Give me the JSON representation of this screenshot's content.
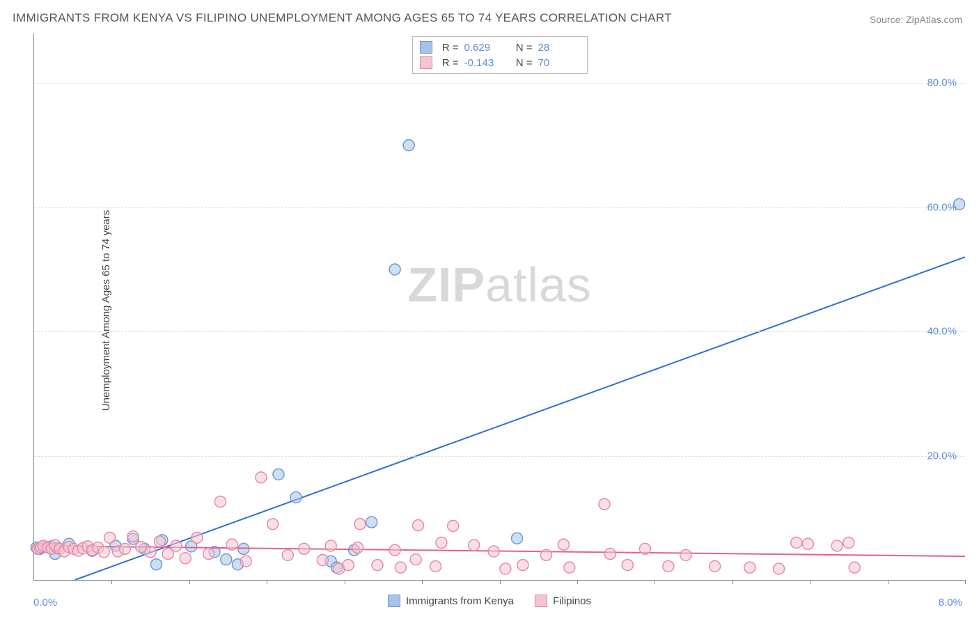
{
  "title": "IMMIGRANTS FROM KENYA VS FILIPINO UNEMPLOYMENT AMONG AGES 65 TO 74 YEARS CORRELATION CHART",
  "source": "Source: ZipAtlas.com",
  "ylabel": "Unemployment Among Ages 65 to 74 years",
  "watermark_left": "ZIP",
  "watermark_right": "atlas",
  "chart": {
    "type": "scatter",
    "background_color": "#ffffff",
    "grid_color": "#dddddd",
    "axis_color": "#888888",
    "tick_label_color": "#5b8fd6",
    "xlim": [
      0.0,
      8.0
    ],
    "ylim": [
      0.0,
      88.0
    ],
    "xlim_labels": [
      "0.0%",
      "8.0%"
    ],
    "yticks": [
      20.0,
      40.0,
      60.0,
      80.0
    ],
    "ytick_labels": [
      "20.0%",
      "40.0%",
      "60.0%",
      "80.0%"
    ],
    "xtick_count": 12,
    "marker_radius": 8,
    "marker_stroke_width": 1.5,
    "trend_line_width": 2,
    "series": [
      {
        "name": "Immigrants from Kenya",
        "fill_color": "#a7c4e8",
        "stroke_color": "#6b9bd6",
        "swatch_fill": "#a7c4e8",
        "swatch_border": "#6b9bd6",
        "trend_color": "#2e6fd4",
        "stats": {
          "R": "0.629",
          "N": "28"
        },
        "trend": {
          "x1": 0.35,
          "y1": 0.0,
          "x2": 8.0,
          "y2": 52.0
        },
        "points": [
          [
            0.02,
            5.2
          ],
          [
            0.05,
            5.0
          ],
          [
            0.1,
            5.3
          ],
          [
            0.15,
            5.4
          ],
          [
            0.18,
            4.2
          ],
          [
            0.2,
            5.1
          ],
          [
            0.3,
            5.8
          ],
          [
            0.5,
            4.7
          ],
          [
            0.7,
            5.5
          ],
          [
            0.85,
            6.6
          ],
          [
            0.95,
            5.0
          ],
          [
            1.05,
            2.5
          ],
          [
            1.1,
            6.4
          ],
          [
            1.35,
            5.4
          ],
          [
            1.55,
            4.5
          ],
          [
            1.65,
            3.3
          ],
          [
            1.75,
            2.5
          ],
          [
            1.8,
            5.0
          ],
          [
            2.1,
            17.0
          ],
          [
            2.25,
            13.3
          ],
          [
            2.55,
            3.0
          ],
          [
            2.6,
            2.0
          ],
          [
            2.75,
            4.8
          ],
          [
            2.9,
            9.3
          ],
          [
            3.1,
            50.0
          ],
          [
            3.22,
            70.0
          ],
          [
            4.15,
            6.7
          ],
          [
            7.95,
            60.5
          ]
        ]
      },
      {
        "name": "Filipinos",
        "fill_color": "#f4c4d1",
        "stroke_color": "#e88aa5",
        "swatch_fill": "#f4c4d1",
        "swatch_border": "#e88aa5",
        "trend_color": "#e95f8b",
        "stats": {
          "R": "-0.143",
          "N": "70"
        },
        "trend": {
          "x1": 0.0,
          "y1": 5.5,
          "x2": 8.0,
          "y2": 3.8
        },
        "points": [
          [
            0.03,
            5.0
          ],
          [
            0.06,
            5.3
          ],
          [
            0.08,
            5.5
          ],
          [
            0.12,
            5.2
          ],
          [
            0.15,
            5.0
          ],
          [
            0.18,
            5.6
          ],
          [
            0.22,
            5.0
          ],
          [
            0.26,
            4.6
          ],
          [
            0.3,
            5.3
          ],
          [
            0.34,
            5.0
          ],
          [
            0.38,
            4.7
          ],
          [
            0.42,
            5.1
          ],
          [
            0.46,
            5.4
          ],
          [
            0.5,
            4.8
          ],
          [
            0.55,
            5.2
          ],
          [
            0.6,
            4.5
          ],
          [
            0.65,
            6.8
          ],
          [
            0.72,
            4.6
          ],
          [
            0.78,
            5.0
          ],
          [
            0.85,
            7.0
          ],
          [
            0.92,
            5.3
          ],
          [
            1.0,
            4.5
          ],
          [
            1.08,
            6.2
          ],
          [
            1.15,
            4.2
          ],
          [
            1.22,
            5.5
          ],
          [
            1.3,
            3.5
          ],
          [
            1.4,
            6.8
          ],
          [
            1.5,
            4.2
          ],
          [
            1.6,
            12.6
          ],
          [
            1.7,
            5.7
          ],
          [
            1.82,
            3.0
          ],
          [
            1.95,
            16.5
          ],
          [
            2.05,
            9.0
          ],
          [
            2.18,
            4.0
          ],
          [
            2.32,
            5.0
          ],
          [
            2.48,
            3.2
          ],
          [
            2.55,
            5.5
          ],
          [
            2.62,
            1.8
          ],
          [
            2.7,
            2.4
          ],
          [
            2.78,
            5.2
          ],
          [
            2.8,
            9.0
          ],
          [
            2.95,
            2.4
          ],
          [
            3.1,
            4.8
          ],
          [
            3.15,
            2.0
          ],
          [
            3.28,
            3.3
          ],
          [
            3.3,
            8.8
          ],
          [
            3.45,
            2.2
          ],
          [
            3.5,
            6.0
          ],
          [
            3.6,
            8.7
          ],
          [
            3.78,
            5.6
          ],
          [
            3.95,
            4.6
          ],
          [
            4.05,
            1.8
          ],
          [
            4.2,
            2.4
          ],
          [
            4.4,
            4.0
          ],
          [
            4.55,
            5.7
          ],
          [
            4.6,
            2.0
          ],
          [
            4.9,
            12.2
          ],
          [
            4.95,
            4.2
          ],
          [
            5.1,
            2.4
          ],
          [
            5.25,
            5.0
          ],
          [
            5.45,
            2.2
          ],
          [
            5.6,
            4.0
          ],
          [
            5.85,
            2.2
          ],
          [
            6.15,
            2.0
          ],
          [
            6.4,
            1.8
          ],
          [
            6.55,
            6.0
          ],
          [
            6.65,
            5.8
          ],
          [
            6.9,
            5.5
          ],
          [
            7.0,
            6.0
          ],
          [
            7.05,
            2.0
          ]
        ]
      }
    ]
  },
  "legend_labels": {
    "series1": "Immigrants from Kenya",
    "series2": "Filipinos"
  },
  "stats_labels": {
    "R": "R =",
    "N": "N ="
  }
}
